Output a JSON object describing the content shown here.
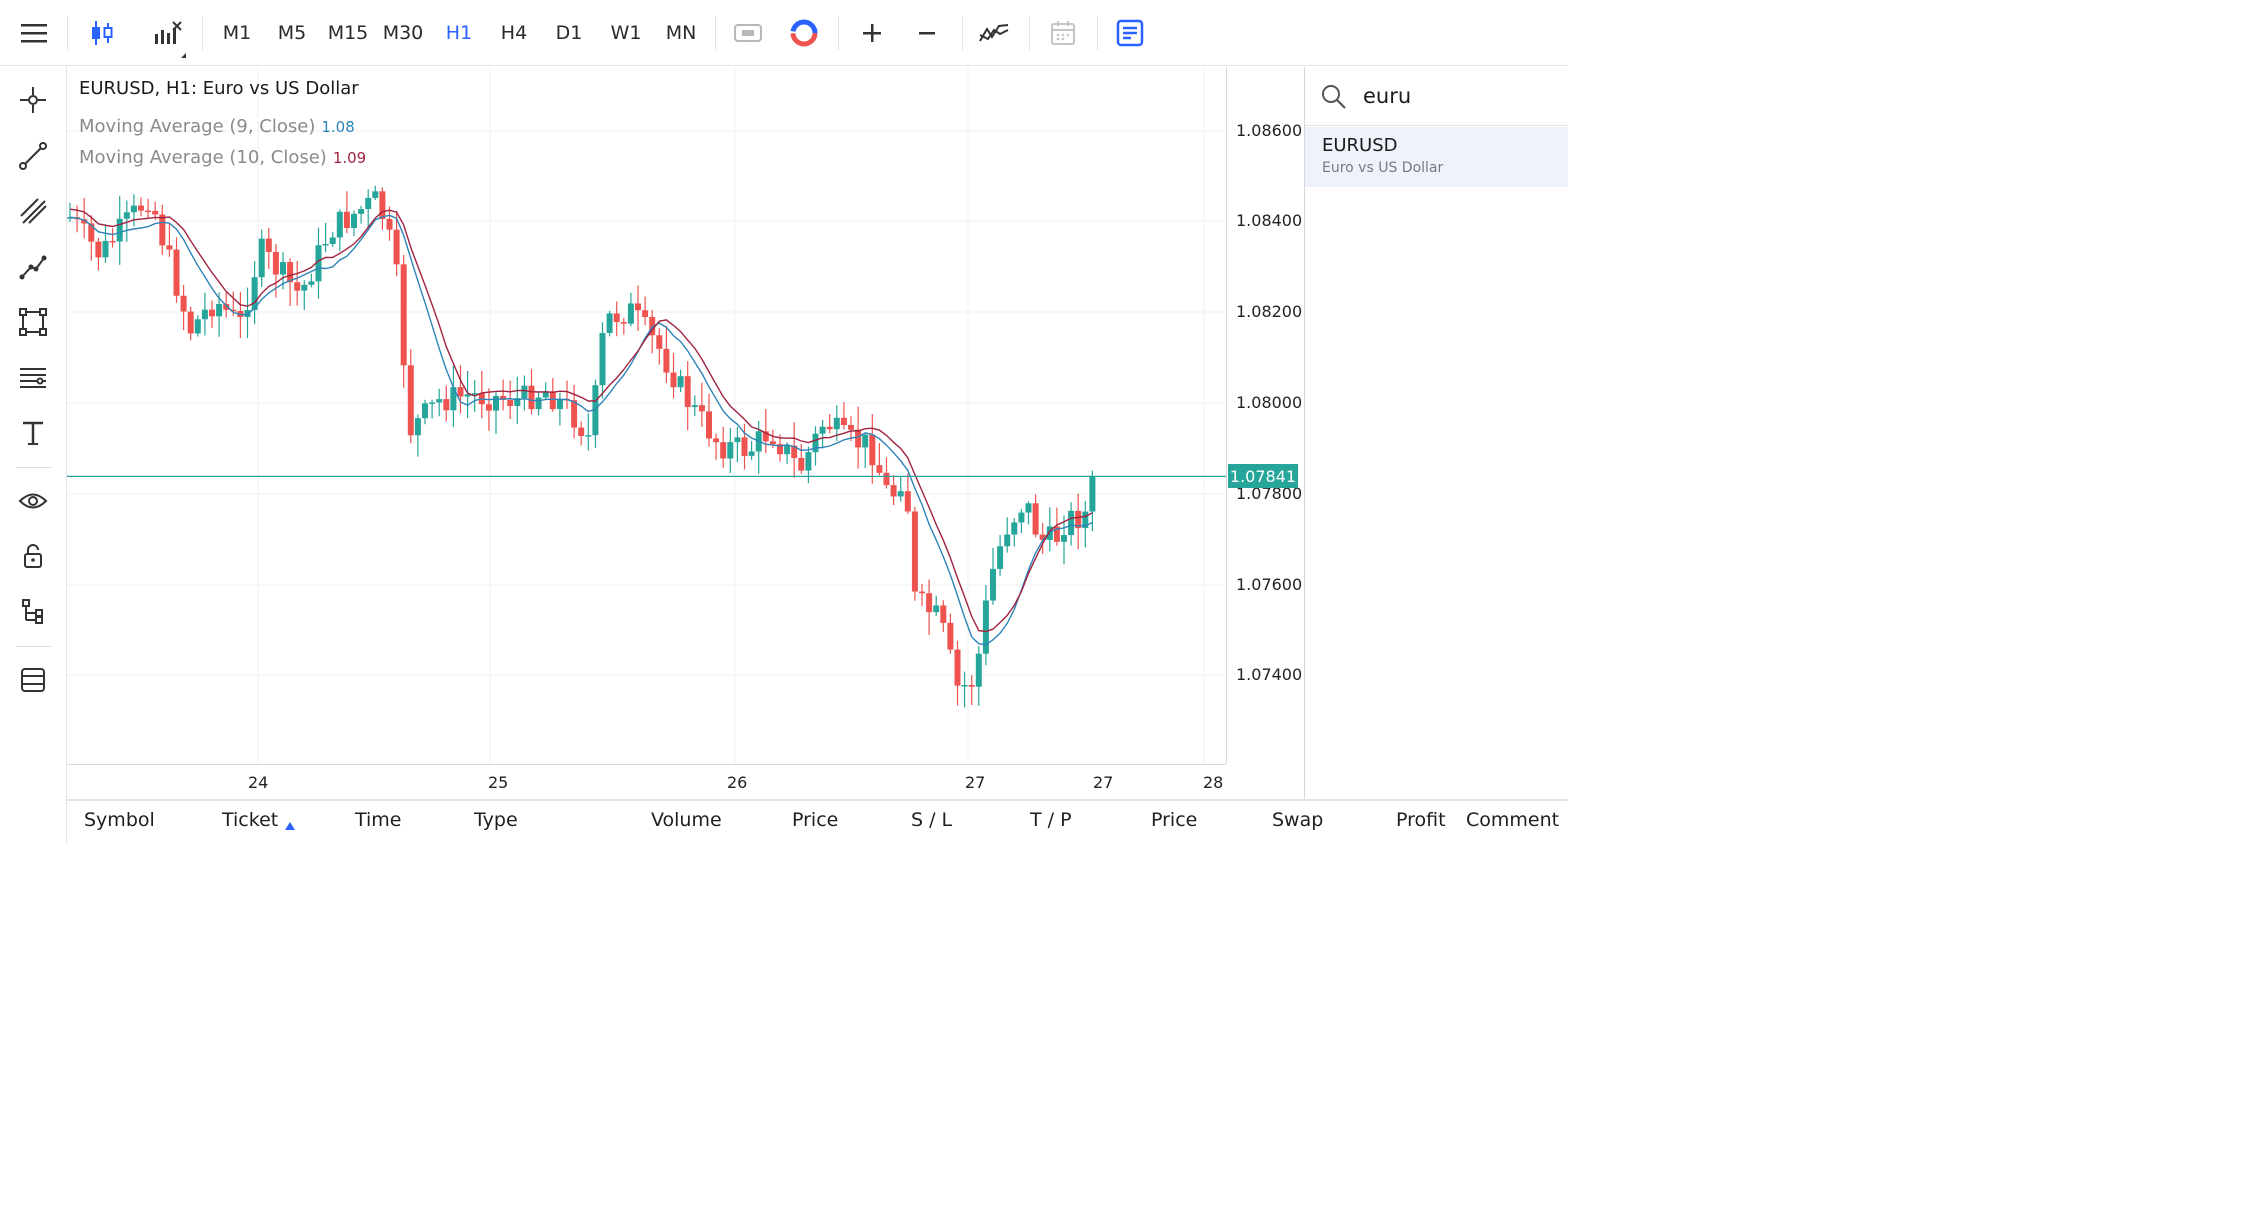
{
  "toolbar": {
    "timeframes": [
      "M1",
      "M5",
      "M15",
      "M30",
      "H1",
      "H4",
      "D1",
      "W1",
      "MN"
    ],
    "active_timeframe": "H1"
  },
  "chart": {
    "title": "EURUSD, H1: Euro vs US Dollar",
    "indicators": [
      {
        "label": "Moving Average (9, Close)",
        "value": "1.08",
        "color": "#2e83b8"
      },
      {
        "label": "Moving Average (10, Close)",
        "value": "1.09",
        "color": "#a0233f"
      }
    ],
    "current_price": "1.07841",
    "price_levels": [
      "1.08600",
      "1.08400",
      "1.08200",
      "1.08000",
      "1.07800",
      "1.07600",
      "1.07400"
    ],
    "time_labels": [
      "24",
      "25",
      "26",
      "27",
      "27",
      "28"
    ],
    "colors": {
      "up": "#26a69a",
      "down": "#ef5350",
      "ma9": "#2e83b8",
      "ma10": "#a0233f"
    }
  },
  "search": {
    "query": "euru"
  },
  "results": [
    {
      "symbol": "EURUSD",
      "description": "Euro vs US Dollar"
    }
  ],
  "table": {
    "columns": [
      "Symbol",
      "Ticket",
      "Time",
      "Type",
      "Volume",
      "Price",
      "S / L",
      "T / P",
      "Price",
      "Swap",
      "Profit",
      "Comment"
    ]
  }
}
